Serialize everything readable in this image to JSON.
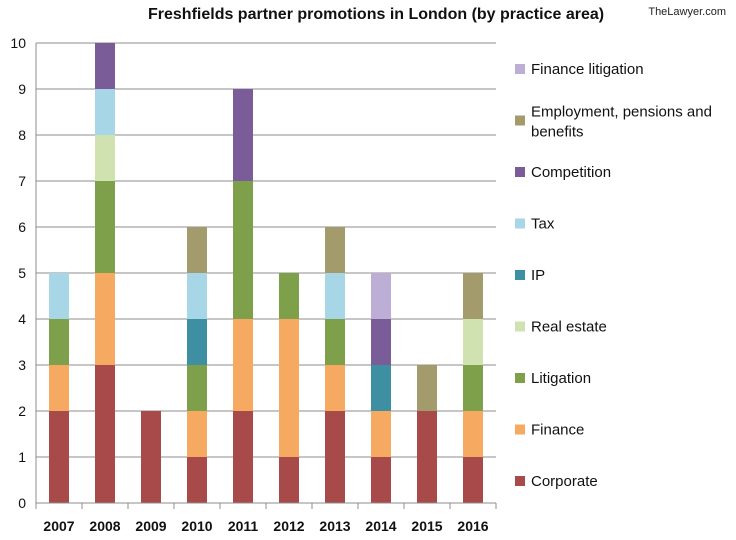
{
  "title": "Freshfields partner promotions in London (by practice area)",
  "source": "TheLawyer.com",
  "chart_data": {
    "type": "bar",
    "stacked": true,
    "title": "Freshfields partner promotions in London (by practice area)",
    "categories": [
      "2007",
      "2008",
      "2009",
      "2010",
      "2011",
      "2012",
      "2013",
      "2014",
      "2015",
      "2016"
    ],
    "ylim": [
      0,
      10
    ],
    "yticks": [
      0,
      1,
      2,
      3,
      4,
      5,
      6,
      7,
      8,
      9,
      10
    ],
    "grid": true,
    "legend_placement": "right",
    "series": [
      {
        "name": "Corporate",
        "color": "#A84A4A",
        "values": [
          2,
          3,
          2,
          1,
          2,
          1,
          2,
          1,
          2,
          1
        ]
      },
      {
        "name": "Finance",
        "color": "#F6A960",
        "values": [
          1,
          2,
          0,
          1,
          2,
          3,
          1,
          1,
          0,
          1
        ]
      },
      {
        "name": "Litigation",
        "color": "#7EA04A",
        "values": [
          1,
          2,
          0,
          1,
          3,
          1,
          1,
          0,
          0,
          1
        ]
      },
      {
        "name": "Real estate",
        "color": "#CFE2B0",
        "values": [
          0,
          1,
          0,
          0,
          0,
          0,
          0,
          0,
          0,
          1
        ]
      },
      {
        "name": "IP",
        "color": "#3F8FA3",
        "values": [
          0,
          0,
          0,
          1,
          0,
          0,
          0,
          1,
          0,
          0
        ]
      },
      {
        "name": "Tax",
        "color": "#A7D6E6",
        "values": [
          1,
          1,
          0,
          1,
          0,
          0,
          1,
          0,
          0,
          0
        ]
      },
      {
        "name": "Competition",
        "color": "#7A5C99",
        "values": [
          0,
          1,
          0,
          0,
          2,
          0,
          0,
          1,
          0,
          0
        ]
      },
      {
        "name": "Employment, pensions and benefits",
        "color": "#A39B6C",
        "values": [
          0,
          0,
          0,
          1,
          0,
          0,
          1,
          0,
          1,
          1
        ]
      },
      {
        "name": "Finance litigation",
        "color": "#BDAED6",
        "values": [
          0,
          0,
          0,
          0,
          0,
          0,
          0,
          1,
          0,
          0
        ]
      }
    ]
  }
}
